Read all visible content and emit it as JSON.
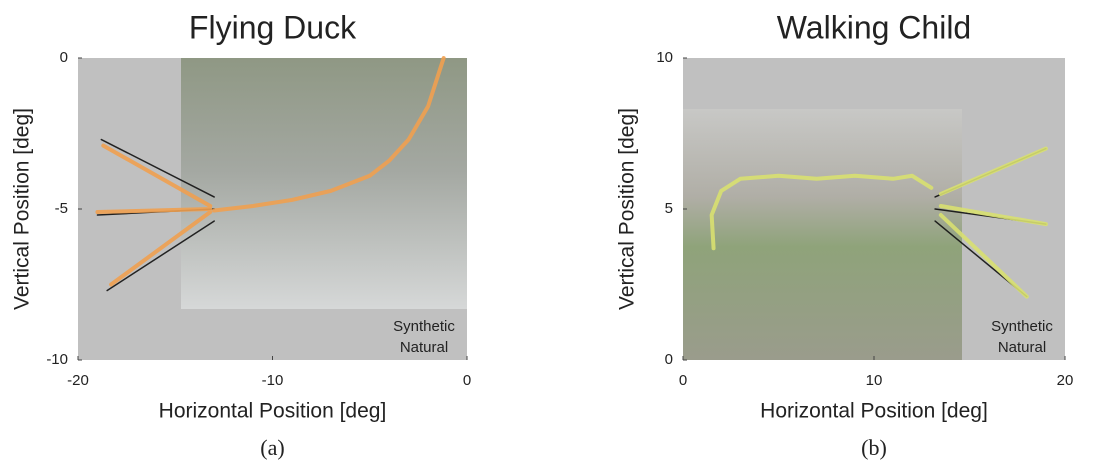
{
  "chart_data": [
    {
      "type": "line",
      "title": "Flying Duck",
      "caption": "(a)",
      "xlabel": "Horizontal Position [deg]",
      "ylabel": "Vertical Position [deg]",
      "xlim": [
        -20,
        0
      ],
      "ylim": [
        -10,
        0
      ],
      "xticks": [
        -20,
        -10,
        0
      ],
      "yticks": [
        -10,
        -5,
        0
      ],
      "series": [
        {
          "name": "Synthetic",
          "color": "#111111",
          "x": [
            -18.8,
            -13,
            null,
            -19,
            -13,
            null,
            -18.5,
            -13
          ],
          "values": [
            -2.7,
            -4.6,
            null,
            -5.2,
            -5.0,
            null,
            -7.7,
            -5.4
          ]
        },
        {
          "name": "Natural",
          "color": "#f0a050",
          "x": [
            -13,
            -11,
            -9,
            -7,
            -5,
            -4,
            -3,
            -2,
            -1.2,
            null,
            -18.7,
            -13.2,
            null,
            -19,
            -13.2,
            null,
            -18.3,
            -13.2
          ],
          "values": [
            -5.05,
            -4.9,
            -4.7,
            -4.4,
            -3.9,
            -3.4,
            -2.7,
            -1.6,
            0,
            null,
            -2.9,
            -4.9,
            null,
            -5.1,
            -5.0,
            null,
            -7.5,
            -5.1
          ]
        }
      ]
    },
    {
      "type": "line",
      "title": "Walking Child",
      "caption": "(b)",
      "xlabel": "Horizontal Position [deg]",
      "ylabel": "Vertical Position [deg]",
      "xlim": [
        0,
        20
      ],
      "ylim": [
        0,
        10
      ],
      "xticks": [
        0,
        10,
        20
      ],
      "yticks": [
        0,
        5,
        10
      ],
      "series": [
        {
          "name": "Synthetic",
          "color": "#111111",
          "x": [
            13.2,
            19,
            null,
            13.2,
            19,
            null,
            13.2,
            18
          ],
          "values": [
            5.4,
            7.0,
            null,
            5.0,
            4.5,
            null,
            4.6,
            2.1
          ]
        },
        {
          "name": "Natural",
          "color": "#d8e070",
          "x": [
            1.6,
            1.5,
            2,
            3,
            5,
            7,
            9,
            11,
            12,
            13,
            null,
            13.5,
            19,
            null,
            13.5,
            19,
            null,
            13.5,
            18
          ],
          "values": [
            3.7,
            4.8,
            5.6,
            6.0,
            6.1,
            6.0,
            6.1,
            6.0,
            6.1,
            5.7,
            null,
            5.5,
            7.0,
            null,
            5.1,
            4.5,
            null,
            4.8,
            2.1
          ]
        }
      ]
    }
  ]
}
